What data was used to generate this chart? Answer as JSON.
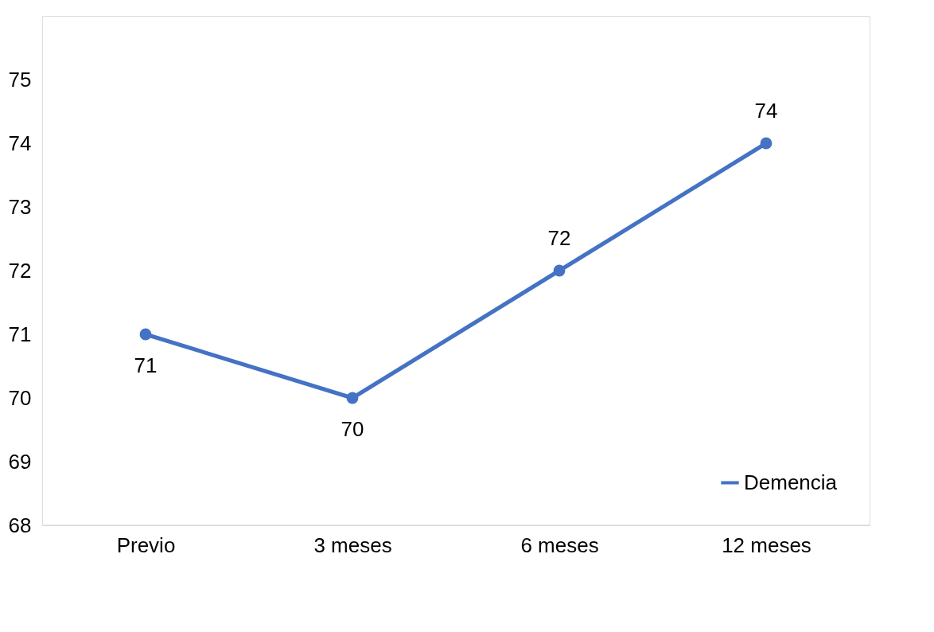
{
  "chart_data": {
    "type": "line",
    "categories": [
      "Previo",
      "3 meses",
      "6 meses",
      "12 meses"
    ],
    "series": [
      {
        "name": "Demencia",
        "color": "#4472c4",
        "values": [
          71,
          70,
          72,
          74
        ]
      }
    ],
    "ylim": [
      68,
      76
    ],
    "yticks": [
      68,
      69,
      70,
      71,
      72,
      73,
      74,
      75
    ],
    "grid": false,
    "legend": "bottom right",
    "marker": "circle",
    "line_style": "solid",
    "data_labels": true
  }
}
